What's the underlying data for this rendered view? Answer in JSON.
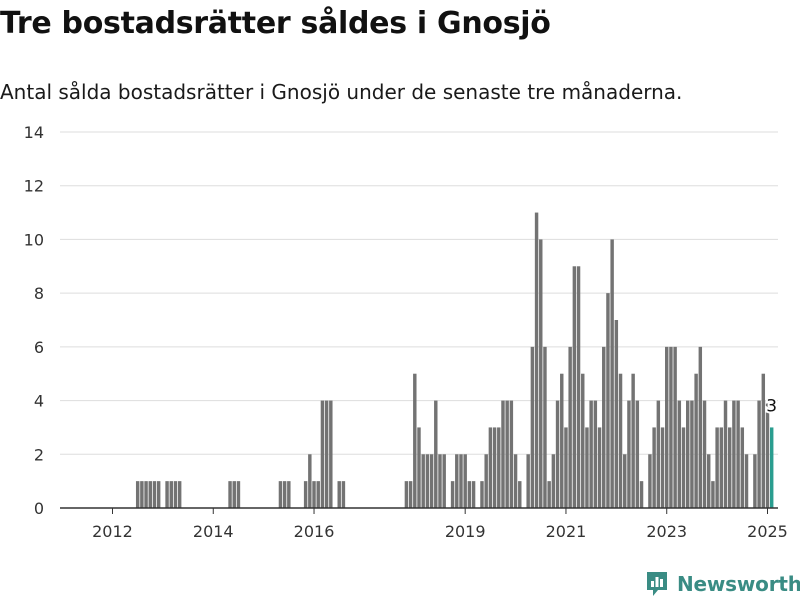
{
  "header": {
    "title": "Tre bostadsrätter såldes i Gnosjö",
    "subtitle": "Antal sålda bostadsrätter i Gnosjö under de senaste tre månaderna."
  },
  "footer": {
    "brand": "Newsworthy",
    "logo_icon": "newsworthy-logo-icon"
  },
  "colors": {
    "bar": "#737373",
    "highlight": "#2a9d8f",
    "grid": "#dddddd",
    "axis": "#333333",
    "brand": "#3a8c84"
  },
  "chart_data": {
    "type": "bar",
    "x_start": "2011-01",
    "x_end": "2025-03",
    "ylim": [
      0,
      14
    ],
    "yticks": [
      0,
      2,
      4,
      6,
      8,
      10,
      12,
      14
    ],
    "xticks": [
      "2012",
      "2014",
      "2016",
      "2019",
      "2021",
      "2023",
      "2025"
    ],
    "xtick_months": [
      "2012-01",
      "2014-01",
      "2016-01",
      "2019-01",
      "2021-01",
      "2023-01",
      "2025-01"
    ],
    "grid": true,
    "xlabel": "",
    "ylabel": "",
    "highlight": {
      "month": "2025-02",
      "value": 3,
      "label": "3"
    },
    "series": [
      {
        "name": "",
        "points": [
          [
            "2012-07",
            1
          ],
          [
            "2012-08",
            1
          ],
          [
            "2012-09",
            1
          ],
          [
            "2012-10",
            1
          ],
          [
            "2012-11",
            1
          ],
          [
            "2012-12",
            1
          ],
          [
            "2013-02",
            1
          ],
          [
            "2013-03",
            1
          ],
          [
            "2013-04",
            1
          ],
          [
            "2013-05",
            1
          ],
          [
            "2014-05",
            1
          ],
          [
            "2014-06",
            1
          ],
          [
            "2014-07",
            1
          ],
          [
            "2015-05",
            1
          ],
          [
            "2015-06",
            1
          ],
          [
            "2015-07",
            1
          ],
          [
            "2015-11",
            1
          ],
          [
            "2015-12",
            2
          ],
          [
            "2016-01",
            1
          ],
          [
            "2016-02",
            1
          ],
          [
            "2016-03",
            4
          ],
          [
            "2016-04",
            4
          ],
          [
            "2016-05",
            4
          ],
          [
            "2016-07",
            1
          ],
          [
            "2016-08",
            1
          ],
          [
            "2017-11",
            1
          ],
          [
            "2017-12",
            1
          ],
          [
            "2018-01",
            5
          ],
          [
            "2018-02",
            3
          ],
          [
            "2018-03",
            2
          ],
          [
            "2018-04",
            2
          ],
          [
            "2018-05",
            2
          ],
          [
            "2018-06",
            4
          ],
          [
            "2018-07",
            2
          ],
          [
            "2018-08",
            2
          ],
          [
            "2018-10",
            1
          ],
          [
            "2018-11",
            2
          ],
          [
            "2018-12",
            2
          ],
          [
            "2019-01",
            2
          ],
          [
            "2019-02",
            1
          ],
          [
            "2019-03",
            1
          ],
          [
            "2019-05",
            1
          ],
          [
            "2019-06",
            2
          ],
          [
            "2019-07",
            3
          ],
          [
            "2019-08",
            3
          ],
          [
            "2019-09",
            3
          ],
          [
            "2019-10",
            4
          ],
          [
            "2019-11",
            4
          ],
          [
            "2019-12",
            4
          ],
          [
            "2020-01",
            2
          ],
          [
            "2020-02",
            1
          ],
          [
            "2020-04",
            2
          ],
          [
            "2020-05",
            6
          ],
          [
            "2020-06",
            11
          ],
          [
            "2020-07",
            10
          ],
          [
            "2020-08",
            6
          ],
          [
            "2020-09",
            1
          ],
          [
            "2020-10",
            2
          ],
          [
            "2020-11",
            4
          ],
          [
            "2020-12",
            5
          ],
          [
            "2021-01",
            3
          ],
          [
            "2021-02",
            6
          ],
          [
            "2021-03",
            9
          ],
          [
            "2021-04",
            9
          ],
          [
            "2021-05",
            5
          ],
          [
            "2021-06",
            3
          ],
          [
            "2021-07",
            4
          ],
          [
            "2021-08",
            4
          ],
          [
            "2021-09",
            3
          ],
          [
            "2021-10",
            6
          ],
          [
            "2021-11",
            8
          ],
          [
            "2021-12",
            10
          ],
          [
            "2022-01",
            7
          ],
          [
            "2022-02",
            5
          ],
          [
            "2022-03",
            2
          ],
          [
            "2022-04",
            4
          ],
          [
            "2022-05",
            5
          ],
          [
            "2022-06",
            4
          ],
          [
            "2022-07",
            1
          ],
          [
            "2022-09",
            2
          ],
          [
            "2022-10",
            3
          ],
          [
            "2022-11",
            4
          ],
          [
            "2022-12",
            3
          ],
          [
            "2023-01",
            6
          ],
          [
            "2023-02",
            6
          ],
          [
            "2023-03",
            6
          ],
          [
            "2023-04",
            4
          ],
          [
            "2023-05",
            3
          ],
          [
            "2023-06",
            4
          ],
          [
            "2023-07",
            4
          ],
          [
            "2023-08",
            5
          ],
          [
            "2023-09",
            6
          ],
          [
            "2023-10",
            4
          ],
          [
            "2023-11",
            2
          ],
          [
            "2023-12",
            1
          ],
          [
            "2024-01",
            3
          ],
          [
            "2024-02",
            3
          ],
          [
            "2024-03",
            4
          ],
          [
            "2024-04",
            3
          ],
          [
            "2024-05",
            4
          ],
          [
            "2024-06",
            4
          ],
          [
            "2024-07",
            3
          ],
          [
            "2024-08",
            2
          ],
          [
            "2024-10",
            2
          ],
          [
            "2024-11",
            4
          ],
          [
            "2024-12",
            5
          ],
          [
            "2025-01",
            4
          ],
          [
            "2025-02",
            3
          ]
        ]
      }
    ]
  }
}
